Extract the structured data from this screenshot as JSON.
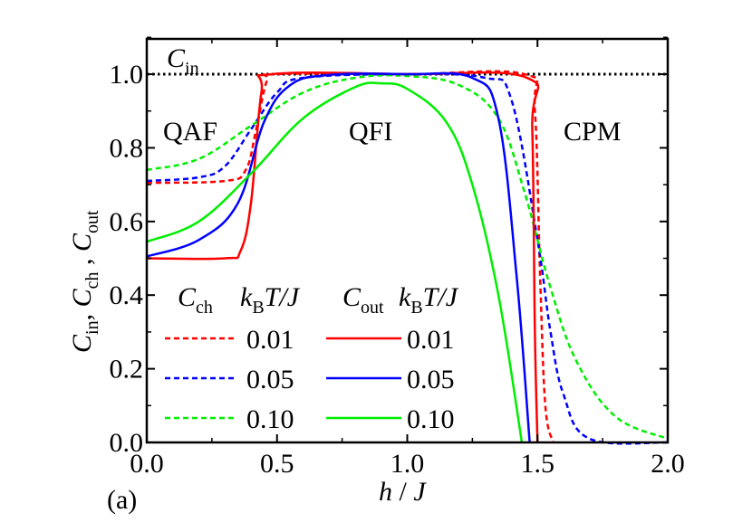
{
  "chart_data": {
    "type": "line",
    "panel_label": "(a)",
    "xlabel": "h / J",
    "ylabel": "C_in , C_ch , C_out",
    "xlim": [
      0.0,
      2.0
    ],
    "ylim": [
      0.0,
      1.1
    ],
    "xticks": [
      "0.0",
      "0.5",
      "1.0",
      "1.5",
      "2.0"
    ],
    "yticks": [
      "0.0",
      "0.2",
      "0.4",
      "0.6",
      "0.8",
      "1.0"
    ],
    "grid": false,
    "annotations": [
      "C_in",
      "QAF",
      "QFI",
      "CPM"
    ],
    "legend": {
      "position": "lower-left",
      "header_left": "C_ch  k_B T/J",
      "header_right": "C_out  k_B T/J",
      "entries": [
        "0.01",
        "0.05",
        "0.10"
      ]
    },
    "series": [
      {
        "name": "C_in",
        "style": "dotted",
        "color": "#000000",
        "x": [
          0.0,
          2.0
        ],
        "y": [
          1.0,
          1.0
        ]
      },
      {
        "name": "C_ch kBT/J=0.01",
        "style": "dashed",
        "color": "#ff0000",
        "x": [
          0.0,
          0.3,
          0.38,
          0.42,
          0.46,
          0.5,
          1.0,
          1.45,
          1.49,
          1.51,
          1.53,
          1.56
        ],
        "y": [
          0.705,
          0.71,
          0.74,
          0.85,
          0.98,
          1.0,
          1.0,
          1.0,
          0.9,
          0.45,
          0.1,
          0.0
        ]
      },
      {
        "name": "C_ch kBT/J=0.05",
        "style": "dashed",
        "color": "#0000ff",
        "x": [
          0.0,
          0.2,
          0.3,
          0.4,
          0.5,
          0.6,
          1.0,
          1.3,
          1.4,
          1.5,
          1.55,
          1.6,
          1.7,
          2.0
        ],
        "y": [
          0.71,
          0.72,
          0.75,
          0.85,
          0.95,
          0.99,
          1.0,
          0.99,
          0.93,
          0.55,
          0.3,
          0.13,
          0.01,
          0.0
        ]
      },
      {
        "name": "C_ch kBT/J=0.10",
        "style": "dashed",
        "color": "#00ee00",
        "x": [
          0.0,
          0.2,
          0.4,
          0.6,
          0.8,
          1.0,
          1.2,
          1.35,
          1.45,
          1.55,
          1.65,
          1.8,
          2.0
        ],
        "y": [
          0.74,
          0.77,
          0.86,
          0.95,
          0.99,
          0.995,
          0.97,
          0.88,
          0.68,
          0.42,
          0.22,
          0.07,
          0.01
        ]
      },
      {
        "name": "C_out kBT/J=0.01",
        "style": "solid",
        "color": "#ff0000",
        "x": [
          0.0,
          0.3,
          0.36,
          0.4,
          0.44,
          0.48,
          1.0,
          1.46,
          1.48,
          1.49,
          1.5
        ],
        "y": [
          0.5,
          0.5,
          0.52,
          0.65,
          0.95,
          1.0,
          1.0,
          0.99,
          0.85,
          0.3,
          0.0
        ]
      },
      {
        "name": "C_out kBT/J=0.05",
        "style": "solid",
        "color": "#0000ff",
        "x": [
          0.0,
          0.2,
          0.35,
          0.45,
          0.55,
          0.7,
          1.0,
          1.25,
          1.35,
          1.42,
          1.47
        ],
        "y": [
          0.505,
          0.55,
          0.65,
          0.87,
          0.97,
          0.998,
          1.0,
          0.99,
          0.88,
          0.45,
          0.0
        ]
      },
      {
        "name": "C_out kBT/J=0.10",
        "style": "solid",
        "color": "#00ee00",
        "x": [
          0.0,
          0.2,
          0.4,
          0.6,
          0.8,
          0.9,
          1.0,
          1.15,
          1.25,
          1.35,
          1.44
        ],
        "y": [
          0.545,
          0.6,
          0.73,
          0.88,
          0.965,
          0.975,
          0.96,
          0.87,
          0.7,
          0.4,
          0.0
        ]
      }
    ]
  }
}
